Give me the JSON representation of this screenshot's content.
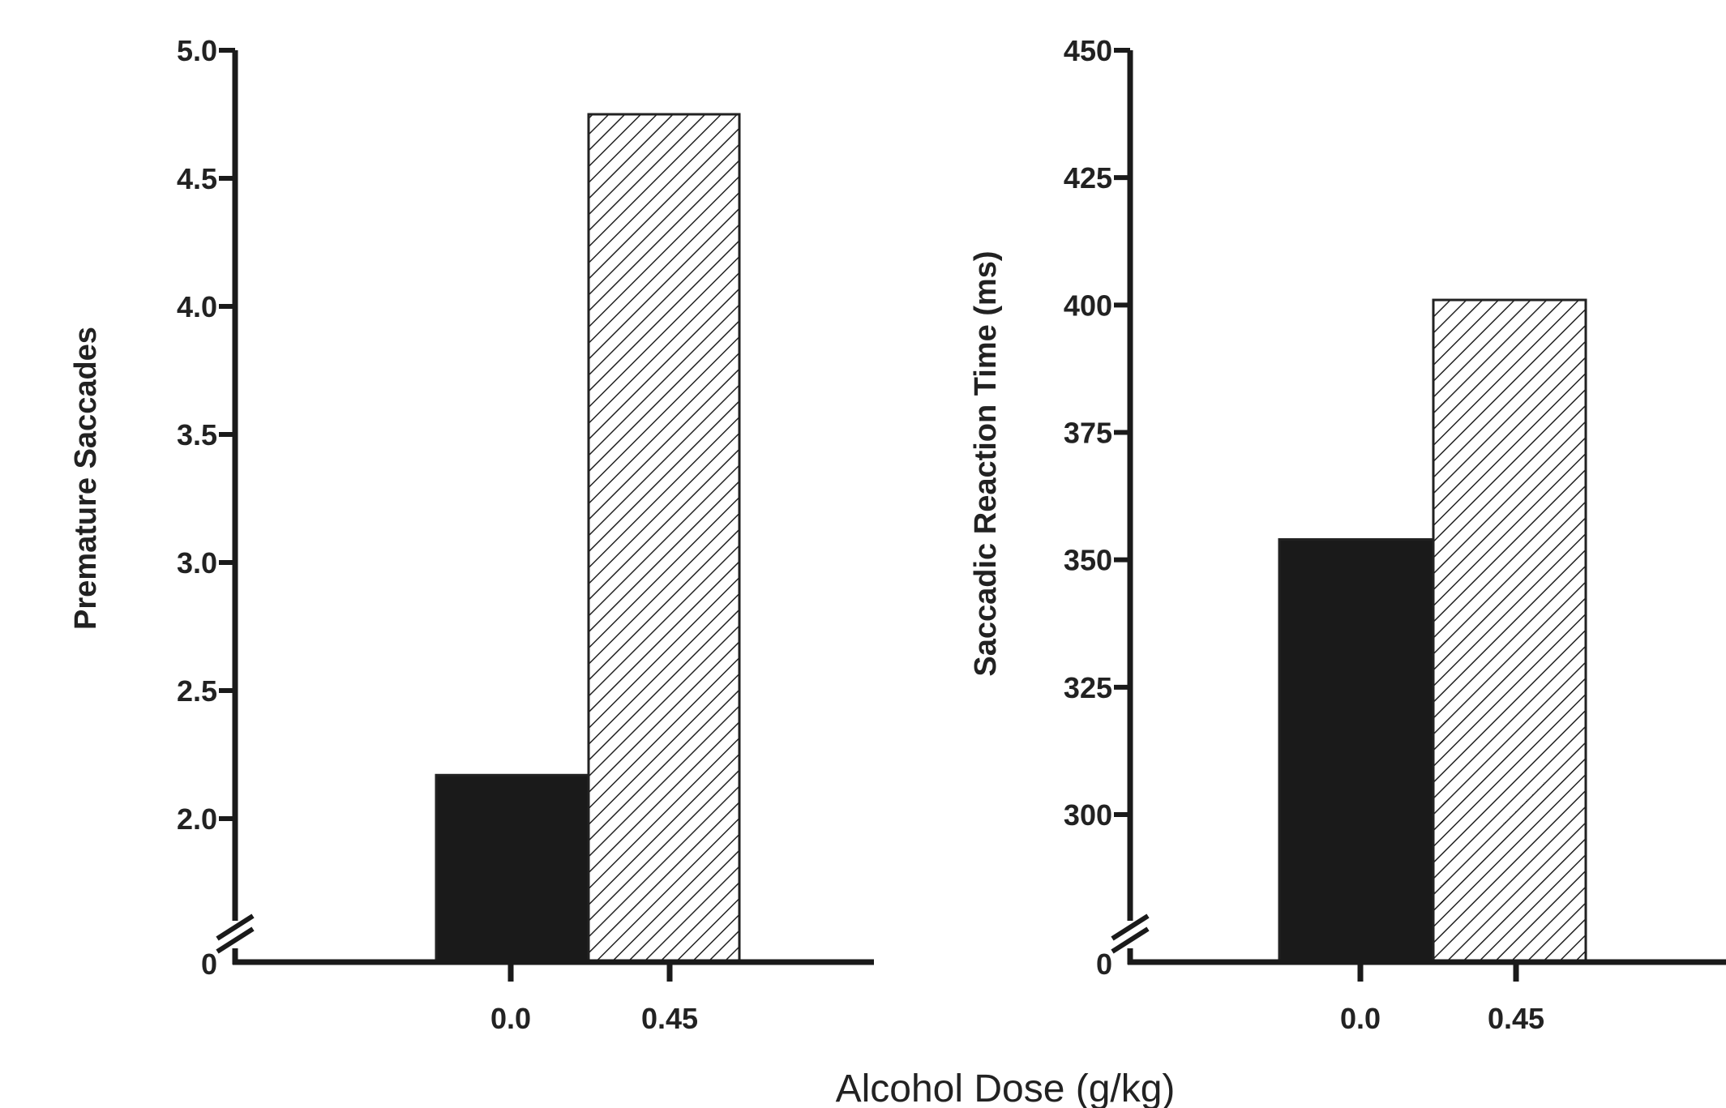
{
  "chart_data": [
    {
      "type": "bar",
      "categories": [
        "0.0",
        "0.45"
      ],
      "values": [
        2.17,
        4.75
      ],
      "ylabel": "Premature Saccades",
      "yticks": [
        "0",
        "2.0",
        "2.5",
        "3.0",
        "3.5",
        "4.0",
        "4.5",
        "5.0"
      ],
      "ylim": [
        1.5,
        5.0
      ],
      "axis_break": true,
      "fills": [
        "solid",
        "hatched"
      ],
      "colors": [
        "#1a1a1a",
        "#ffffff"
      ]
    },
    {
      "type": "bar",
      "categories": [
        "0.0",
        "0.45"
      ],
      "values": [
        354,
        401
      ],
      "ylabel": "Saccadic Reaction Time (ms)",
      "yticks": [
        "0",
        "300",
        "325",
        "350",
        "375",
        "400",
        "425",
        "450"
      ],
      "ylim": [
        275,
        450
      ],
      "axis_break": true,
      "fills": [
        "solid",
        "hatched"
      ],
      "colors": [
        "#1a1a1a",
        "#ffffff"
      ]
    }
  ],
  "xlabel": "Alcohol Dose (g/kg)"
}
